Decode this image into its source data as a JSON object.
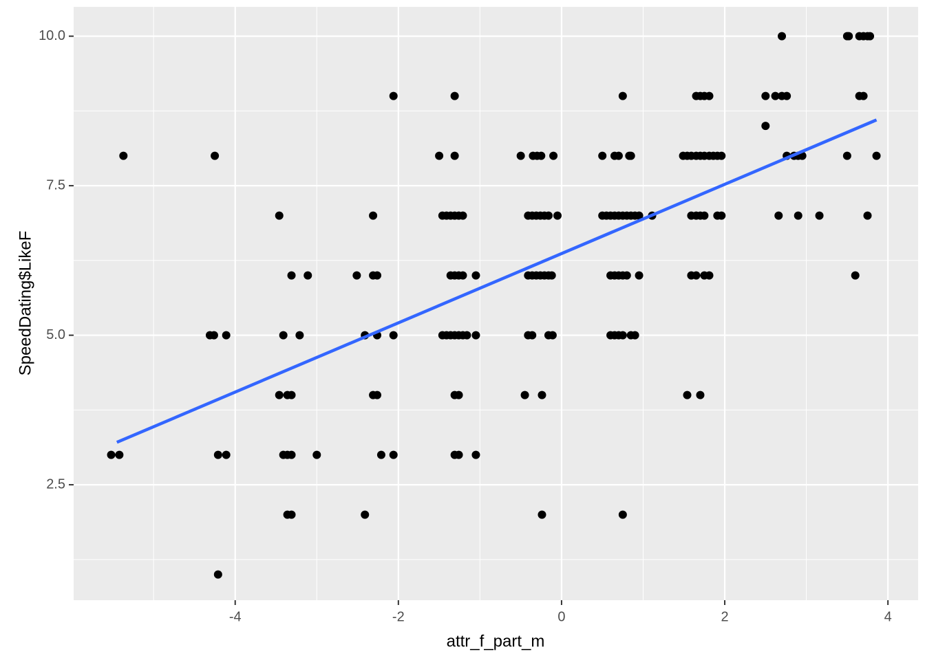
{
  "chart_data": {
    "type": "scatter",
    "x_label": "attr_f_part_m",
    "y_label": "SpeedDating$LikeF",
    "xlim": [
      -5.98,
      4.37
    ],
    "ylim": [
      0.57,
      10.49
    ],
    "xticks": [
      -4,
      -2,
      0,
      2,
      4
    ],
    "yticks": [
      {
        "value": 2.5,
        "label": "2.5"
      },
      {
        "value": 5.0,
        "label": "5.0"
      },
      {
        "value": 7.5,
        "label": "7.5"
      },
      {
        "value": 10.0,
        "label": "10.0"
      }
    ],
    "minor_xticks": [
      -5,
      -3,
      -1,
      1,
      3
    ],
    "minor_yticks": [
      1.25,
      3.75,
      6.25,
      8.75
    ],
    "grid": true,
    "series": [
      {
        "color": "#000000",
        "x": [
          2.7,
          3.5,
          3.52,
          3.65,
          3.7,
          3.75,
          3.78,
          -2.06,
          -1.31,
          0.75,
          1.65,
          1.7,
          1.75,
          1.81,
          2.5,
          2.62,
          2.7,
          2.76,
          3.65,
          3.7,
          2.5,
          -5.37,
          -4.25,
          -1.5,
          -1.31,
          -0.5,
          -0.35,
          -0.3,
          -0.25,
          -0.1,
          0.5,
          0.65,
          0.7,
          0.83,
          0.85,
          1.49,
          1.54,
          1.59,
          1.65,
          1.7,
          1.75,
          1.81,
          1.86,
          1.91,
          1.96,
          2.76,
          2.85,
          2.9,
          2.95,
          3.5,
          3.86,
          -3.46,
          -2.31,
          -1.46,
          -1.41,
          -1.36,
          -1.31,
          -1.26,
          -1.21,
          -0.41,
          -0.36,
          -0.31,
          -0.26,
          -0.21,
          -0.16,
          -0.05,
          0.5,
          0.55,
          0.6,
          0.65,
          0.7,
          0.75,
          0.8,
          0.85,
          0.9,
          0.95,
          1.11,
          1.59,
          1.65,
          1.7,
          1.75,
          1.91,
          1.96,
          2.66,
          2.9,
          3.16,
          3.75,
          -3.31,
          -3.11,
          -2.51,
          -2.31,
          -2.26,
          -1.36,
          -1.31,
          -1.26,
          -1.21,
          -1.05,
          -0.41,
          -0.36,
          -0.31,
          -0.26,
          -0.21,
          -0.16,
          -0.12,
          0.6,
          0.65,
          0.7,
          0.75,
          0.8,
          0.95,
          1.59,
          1.65,
          1.75,
          1.81,
          3.6,
          -4.31,
          -4.26,
          -4.11,
          -3.41,
          -3.21,
          -2.41,
          -2.26,
          -2.06,
          -1.46,
          -1.41,
          -1.36,
          -1.31,
          -1.26,
          -1.21,
          -1.16,
          -1.05,
          -0.41,
          -0.36,
          -0.16,
          -0.11,
          0.6,
          0.65,
          0.7,
          0.75,
          0.85,
          0.9,
          -3.46,
          -3.36,
          -3.31,
          -2.31,
          -2.26,
          -1.31,
          -1.26,
          -0.45,
          -0.24,
          1.54,
          1.7,
          -5.52,
          -5.42,
          -4.21,
          -4.11,
          -3.41,
          -3.36,
          -3.31,
          -3.0,
          -2.21,
          -2.06,
          -1.31,
          -1.26,
          -1.05,
          -3.36,
          -3.31,
          -2.41,
          -0.24,
          0.75,
          -4.21
        ],
        "y": [
          10,
          10,
          10,
          10,
          10,
          10,
          10,
          9,
          9,
          9,
          9,
          9,
          9,
          9,
          9,
          9,
          9,
          9,
          9,
          9,
          8.5,
          8,
          8,
          8,
          8,
          8,
          8,
          8,
          8,
          8,
          8,
          8,
          8,
          8,
          8,
          8,
          8,
          8,
          8,
          8,
          8,
          8,
          8,
          8,
          8,
          8,
          8,
          8,
          8,
          8,
          8,
          7,
          7,
          7,
          7,
          7,
          7,
          7,
          7,
          7,
          7,
          7,
          7,
          7,
          7,
          7,
          7,
          7,
          7,
          7,
          7,
          7,
          7,
          7,
          7,
          7,
          7,
          7,
          7,
          7,
          7,
          7,
          7,
          7,
          7,
          7,
          7,
          6,
          6,
          6,
          6,
          6,
          6,
          6,
          6,
          6,
          6,
          6,
          6,
          6,
          6,
          6,
          6,
          6,
          6,
          6,
          6,
          6,
          6,
          6,
          6,
          6,
          6,
          6,
          6,
          5,
          5,
          5,
          5,
          5,
          5,
          5,
          5,
          5,
          5,
          5,
          5,
          5,
          5,
          5,
          5,
          5,
          5,
          5,
          5,
          5,
          5,
          5,
          5,
          5,
          5,
          4,
          4,
          4,
          4,
          4,
          4,
          4,
          4,
          4,
          4,
          4,
          3,
          3,
          3,
          3,
          3,
          3,
          3,
          3,
          3,
          3,
          3,
          3,
          3,
          2,
          2,
          2,
          2,
          2,
          1
        ]
      }
    ],
    "fit": {
      "color": "#3366ff",
      "x": [
        -5.45,
        3.86
      ],
      "y": [
        3.21,
        8.6
      ]
    }
  }
}
